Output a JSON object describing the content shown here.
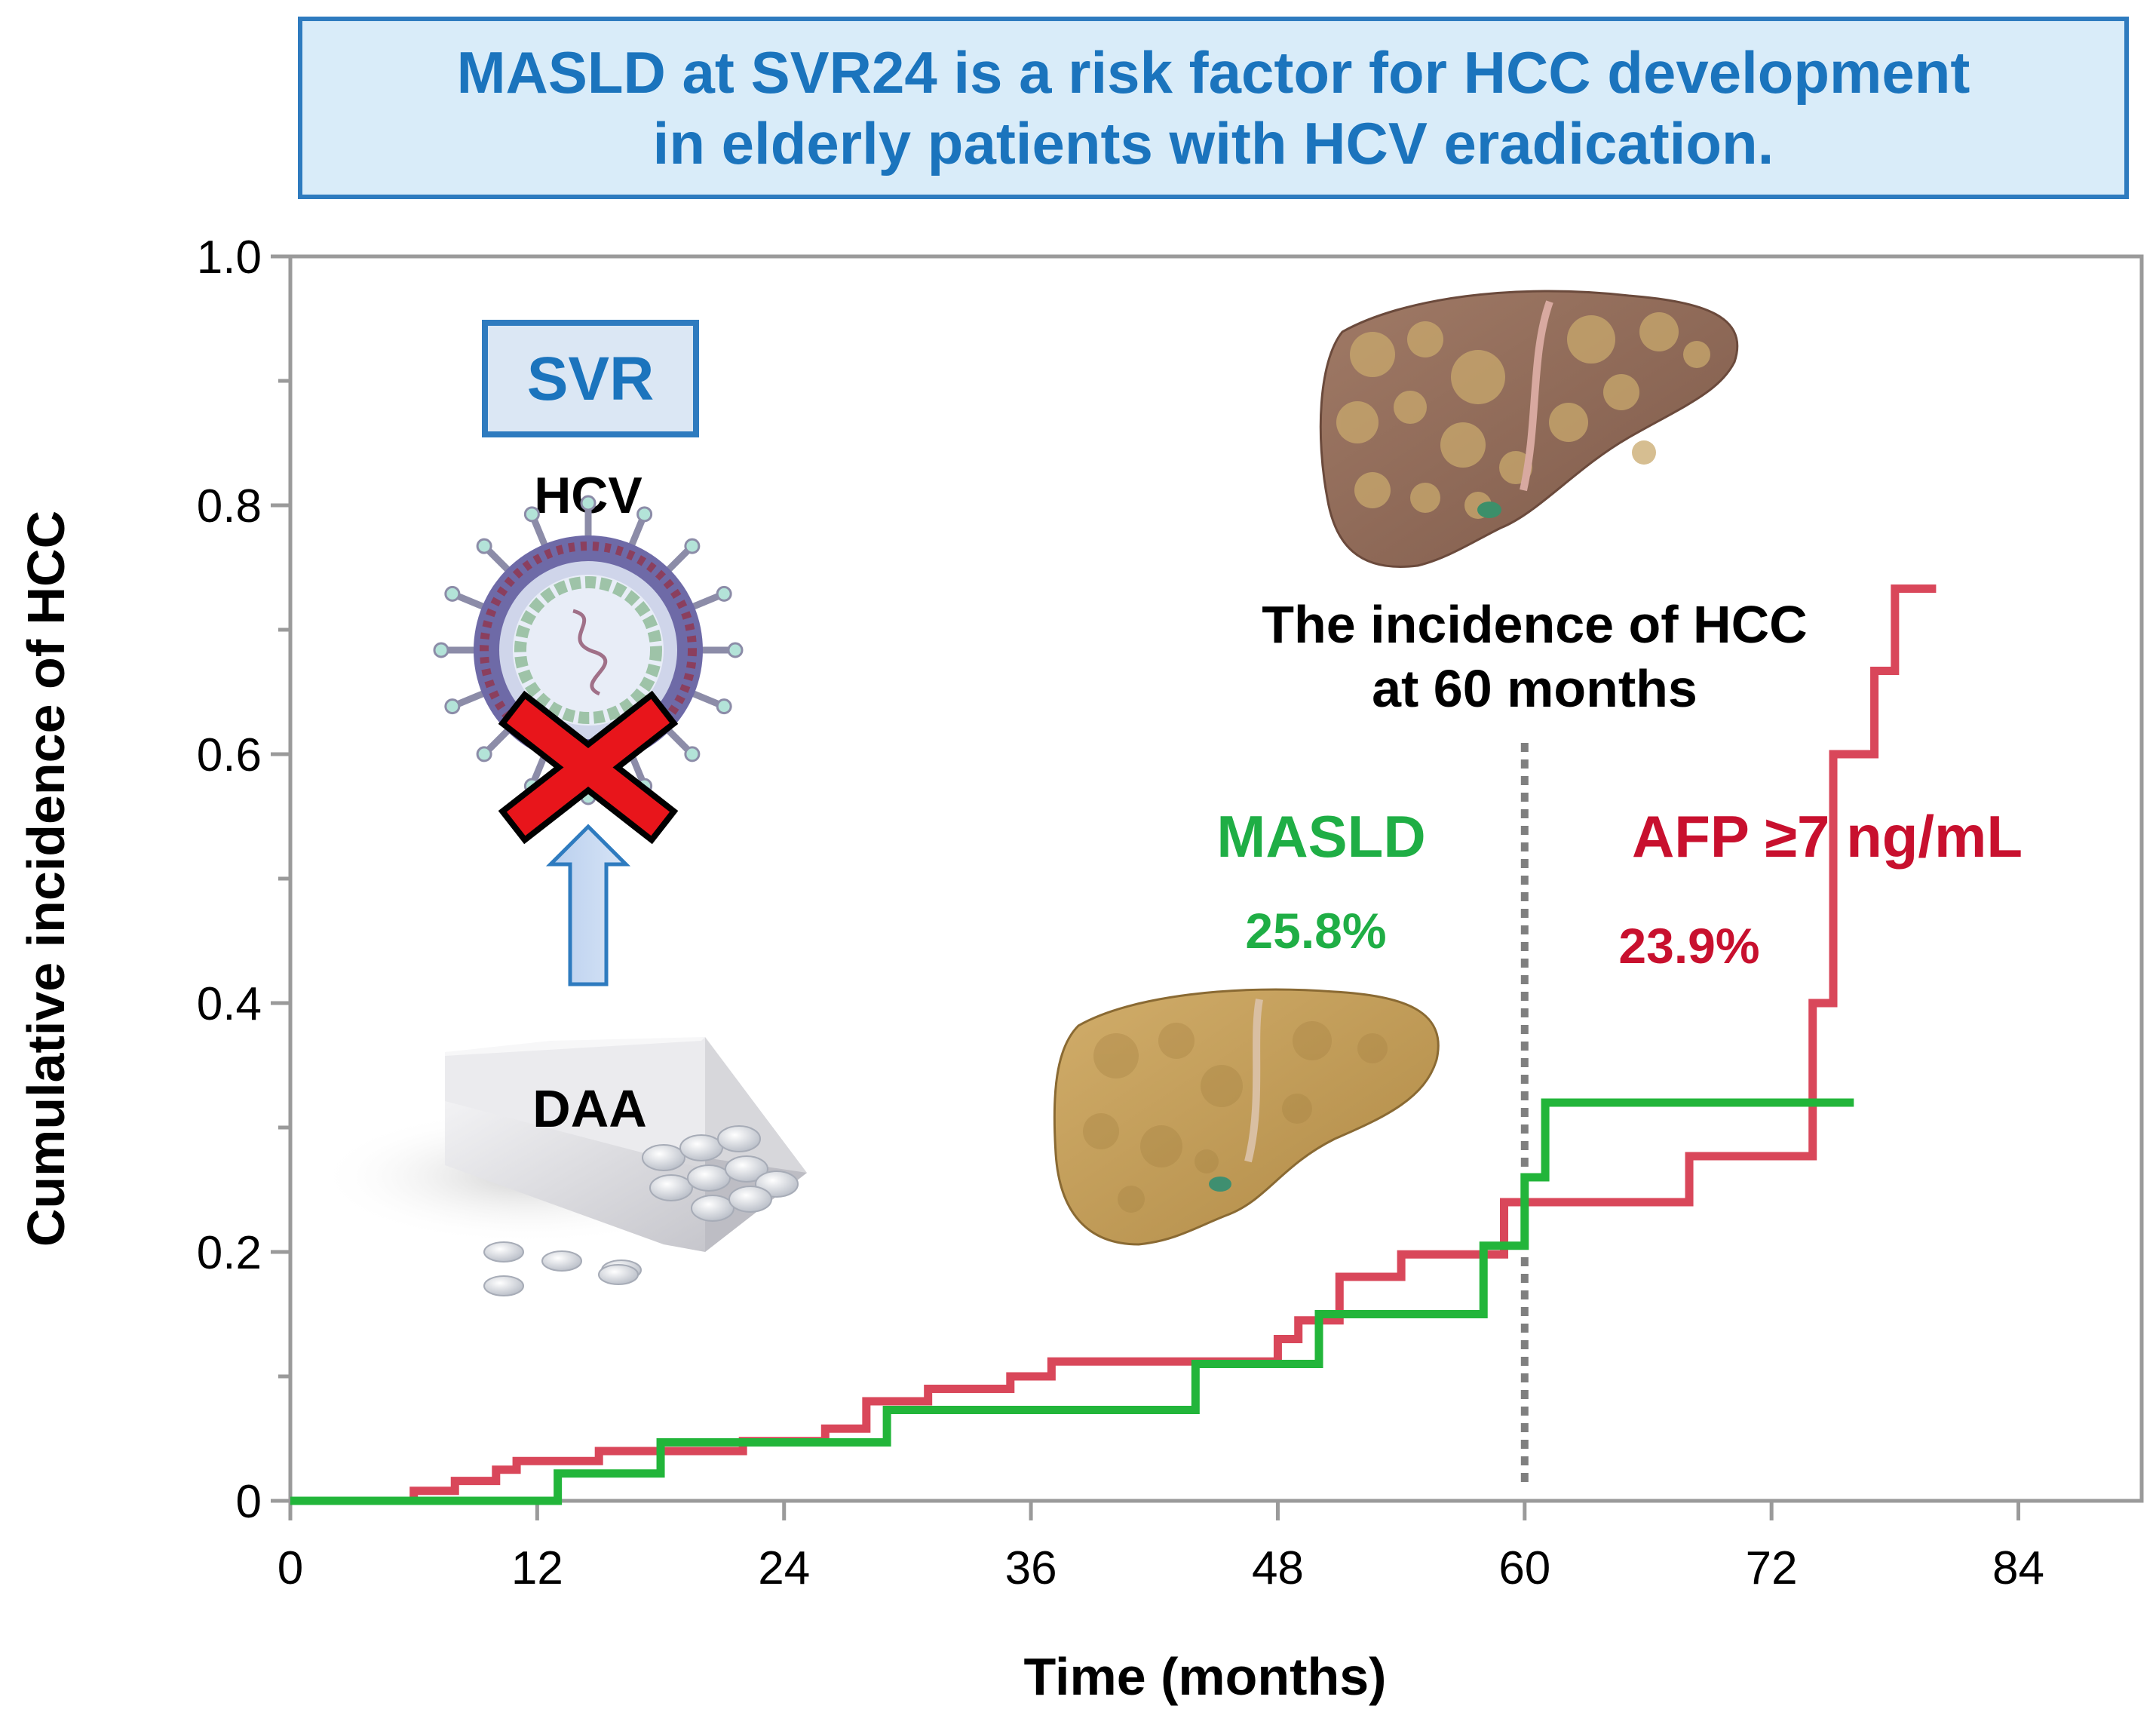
{
  "banner": {
    "line1": "MASLD at SVR24 is a risk factor for HCC development",
    "line2": "in elderly patients with HCV eradication."
  },
  "illustration": {
    "svr_label": "SVR",
    "hcv_label": "HCV",
    "daa_label": "DAA"
  },
  "annotations": {
    "incidence_line1": "The incidence of HCC",
    "incidence_line2": "at 60 months",
    "masld_label": "MASLD",
    "masld_value": "25.8%",
    "afp_label": "AFP ≥7 ng/mL",
    "afp_value": "23.9%"
  },
  "colors": {
    "masld": "#22b53a",
    "afp": "#d9475a",
    "banner_text": "#1b74bd",
    "afp_text": "#c8102e",
    "masld_text": "#1fae45"
  },
  "chart_data": {
    "type": "line",
    "step": true,
    "title": "",
    "xlabel": "Time (months)",
    "ylabel": "Cumulative incidence of HCC",
    "xlim": [
      0,
      88
    ],
    "ylim": [
      0,
      1.0
    ],
    "xticks": [
      0,
      12,
      24,
      36,
      48,
      60,
      72,
      84
    ],
    "yticks": [
      0,
      0.2,
      0.4,
      0.6,
      0.8,
      1.0
    ],
    "ytick_labels": [
      "0",
      "0.2",
      "0.4",
      "0.6",
      "0.8",
      "1.0"
    ],
    "vline_x": 60,
    "series": [
      {
        "name": "AFP ≥7 ng/mL",
        "x": [
          0,
          6,
          8,
          10,
          11,
          15,
          22,
          26,
          28,
          31,
          35,
          37,
          48,
          49,
          51,
          54,
          59,
          68,
          74,
          75,
          76,
          77,
          78,
          80
        ],
        "y": [
          0,
          0.008,
          0.016,
          0.025,
          0.032,
          0.04,
          0.048,
          0.058,
          0.08,
          0.09,
          0.1,
          0.112,
          0.13,
          0.145,
          0.18,
          0.198,
          0.24,
          0.277,
          0.4,
          0.6,
          0.6,
          0.667,
          0.733,
          0.733
        ]
      },
      {
        "name": "MASLD",
        "x": [
          0,
          13,
          18,
          29,
          44,
          50,
          58,
          60,
          61,
          76
        ],
        "y": [
          0,
          0.022,
          0.047,
          0.073,
          0.11,
          0.15,
          0.205,
          0.26,
          0.32,
          0.32
        ]
      }
    ]
  }
}
